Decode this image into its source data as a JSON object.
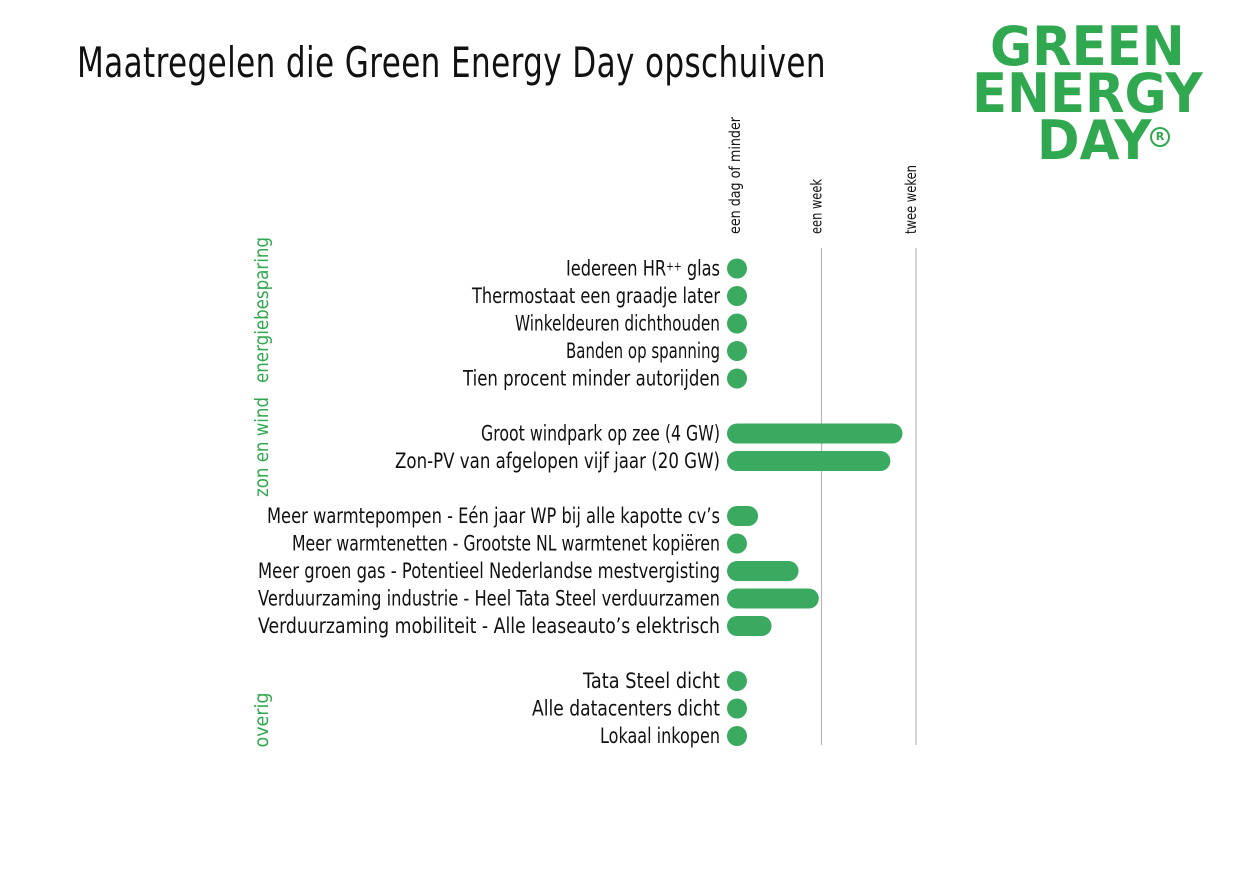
{
  "colors": {
    "bar": "#3aaa61",
    "accent": "#2fa84f",
    "gridline": "#b8b8b8",
    "text": "#111111"
  },
  "logo": {
    "line1": "GREEN",
    "line2": "ENERGY",
    "line3": "DAY",
    "reg": "R"
  },
  "chart_data": {
    "type": "bar",
    "orientation": "horizontal",
    "title": "Maatregelen die Green Energy Day opschuiven",
    "x_ticks": [
      {
        "label": "een dag of minder",
        "value": 1
      },
      {
        "label": "een week",
        "value": 7
      },
      {
        "label": "twee weken",
        "value": 14
      }
    ],
    "x_unit": "days",
    "grid": true,
    "groups": [
      {
        "label": "energiebesparing",
        "items": [
          {
            "label": "Iedereen HR",
            "label_sup": "++",
            "label_tail": " glas",
            "value": 0.4
          },
          {
            "label": "Thermostaat een graadje later",
            "value": 0.4
          },
          {
            "label": "Winkeldeuren dichthouden",
            "value": 0.4
          },
          {
            "label": "Banden op spanning",
            "value": 0.4
          },
          {
            "label": "Tien procent minder autorijden",
            "value": 0.4
          }
        ]
      },
      {
        "label": "zon en wind",
        "items": [
          {
            "label": "Groot windpark op zee (4 GW)",
            "value": 13.0
          },
          {
            "label": "Zon-PV van afgelopen vijf jaar (20 GW)",
            "value": 12.1
          }
        ]
      },
      {
        "label": "",
        "items": [
          {
            "label": "Meer warmtepompen - Eén jaar WP bij alle kapotte cv’s",
            "value": 2.3
          },
          {
            "label": "Meer warmtenetten - Grootste NL warmtenet kopiëren",
            "value": 0.8
          },
          {
            "label": "Meer groen gas - Potentieel Nederlandse mestvergisting",
            "value": 5.3
          },
          {
            "label": "Verduurzaming industrie - Heel Tata Steel verduurzamen",
            "value": 6.8
          },
          {
            "label": "Verduurzaming mobiliteit - Alle leaseauto’s elektrisch",
            "value": 3.3
          }
        ]
      },
      {
        "label": "overig",
        "items": [
          {
            "label": "Tata Steel dicht",
            "value": 1.2
          },
          {
            "label": "Alle datacenters dicht",
            "value": 0.8
          },
          {
            "label": "Lokaal inkopen",
            "value": 0.8
          }
        ]
      }
    ]
  }
}
